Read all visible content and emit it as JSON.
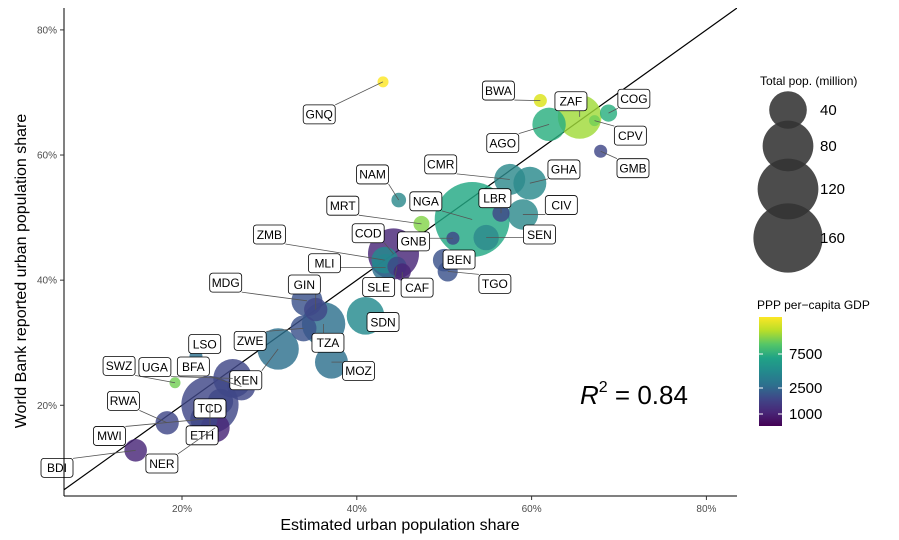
{
  "chart_data": {
    "type": "scatter",
    "xlabel": "Estimated urban population share",
    "ylabel": "World Bank reported urban population share",
    "xlim": [
      0.065,
      0.835
    ],
    "ylim": [
      0.055,
      0.835
    ],
    "xticks": [
      0.2,
      0.4,
      0.6,
      0.8
    ],
    "yticks": [
      0.2,
      0.4,
      0.6,
      0.8
    ],
    "xtick_labels": [
      "20%",
      "40%",
      "60%",
      "80%"
    ],
    "ytick_labels": [
      "20%",
      "40%",
      "60%",
      "80%"
    ],
    "grid": false,
    "identity_line": true,
    "annotation": {
      "r_symbol": "R",
      "superscript": "2",
      "text": " = 0.84"
    },
    "legend_size": {
      "title": "Total pop. (million)",
      "values": [
        40,
        80,
        120,
        160
      ],
      "labels": [
        "40",
        "80",
        "120",
        "160"
      ]
    },
    "legend_color": {
      "title": "PPP per−capita GDP",
      "labels": [
        "7500",
        "2500",
        "1000"
      ],
      "colors": [
        "#FDE725",
        "#B8DE29",
        "#55C667",
        "#20A386",
        "#238A8D",
        "#2D708E",
        "#3F4788",
        "#482677",
        "#440154"
      ]
    },
    "points": [
      {
        "code": "GNQ",
        "x": 0.43,
        "y": 0.717,
        "pop": 1,
        "color": "#FDE725"
      },
      {
        "code": "BWA",
        "x": 0.61,
        "y": 0.687,
        "pop": 2,
        "color": "#DCE319"
      },
      {
        "code": "ZAF",
        "x": 0.655,
        "y": 0.661,
        "pop": 57,
        "color": "#A0DA39"
      },
      {
        "code": "COG",
        "x": 0.688,
        "y": 0.667,
        "pop": 5,
        "color": "#29AF7F"
      },
      {
        "code": "CPV",
        "x": 0.672,
        "y": 0.655,
        "pop": 1,
        "color": "#73D055"
      },
      {
        "code": "AGO",
        "x": 0.62,
        "y": 0.649,
        "pop": 30,
        "color": "#29AF7F"
      },
      {
        "code": "GMB",
        "x": 0.679,
        "y": 0.606,
        "pop": 2,
        "color": "#3F4788"
      },
      {
        "code": "CMR",
        "x": 0.575,
        "y": 0.561,
        "pop": 25,
        "color": "#2D8A8C"
      },
      {
        "code": "GHA",
        "x": 0.598,
        "y": 0.555,
        "pop": 29,
        "color": "#2A8A8C"
      },
      {
        "code": "NAM",
        "x": 0.448,
        "y": 0.528,
        "pop": 3,
        "color": "#2D8A8C"
      },
      {
        "code": "NGA",
        "x": 0.532,
        "y": 0.497,
        "pop": 190,
        "color": "#22A884"
      },
      {
        "code": "LBR",
        "x": 0.565,
        "y": 0.507,
        "pop": 5,
        "color": "#3F4788"
      },
      {
        "code": "CIV",
        "x": 0.59,
        "y": 0.505,
        "pop": 24,
        "color": "#2D8A8C"
      },
      {
        "code": "MRT",
        "x": 0.474,
        "y": 0.49,
        "pop": 4,
        "color": "#84D44B"
      },
      {
        "code": "SEN",
        "x": 0.548,
        "y": 0.468,
        "pop": 15,
        "color": "#2D8A8C"
      },
      {
        "code": "COD",
        "x": 0.442,
        "y": 0.442,
        "pop": 81,
        "color": "#482677"
      },
      {
        "code": "GNB",
        "x": 0.51,
        "y": 0.467,
        "pop": 2,
        "color": "#3F4788"
      },
      {
        "code": "BEN",
        "x": 0.5,
        "y": 0.432,
        "pop": 11,
        "color": "#3B528B"
      },
      {
        "code": "ZMB",
        "x": 0.432,
        "y": 0.432,
        "pop": 17,
        "color": "#238A8D"
      },
      {
        "code": "MLI",
        "x": 0.433,
        "y": 0.42,
        "pop": 18,
        "color": "#2D708E"
      },
      {
        "code": "TGO",
        "x": 0.504,
        "y": 0.414,
        "pop": 8,
        "color": "#3B528B"
      },
      {
        "code": "SLE",
        "x": 0.446,
        "y": 0.422,
        "pop": 7,
        "color": "#3F4788"
      },
      {
        "code": "CAF",
        "x": 0.452,
        "y": 0.413,
        "pop": 5,
        "color": "#482677"
      },
      {
        "code": "MDG",
        "x": 0.343,
        "y": 0.367,
        "pop": 25,
        "color": "#3B528B"
      },
      {
        "code": "GIN",
        "x": 0.353,
        "y": 0.353,
        "pop": 12,
        "color": "#3F4788"
      },
      {
        "code": "SDN",
        "x": 0.41,
        "y": 0.343,
        "pop": 40,
        "color": "#238A8D"
      },
      {
        "code": "TZA",
        "x": 0.362,
        "y": 0.33,
        "pop": 56,
        "color": "#2D708E"
      },
      {
        "code": "ZWE",
        "x": 0.339,
        "y": 0.323,
        "pop": 16,
        "color": "#3B528B"
      },
      {
        "code": "LSO",
        "x": 0.216,
        "y": 0.278,
        "pop": 2,
        "color": "#2D708E"
      },
      {
        "code": "MOZ",
        "x": 0.371,
        "y": 0.269,
        "pop": 29,
        "color": "#2D708E"
      },
      {
        "code": "KEN",
        "x": 0.31,
        "y": 0.29,
        "pop": 50,
        "color": "#2D708E"
      },
      {
        "code": "SWZ",
        "x": 0.192,
        "y": 0.236,
        "pop": 1,
        "color": "#73D055"
      },
      {
        "code": "UGA",
        "x": 0.258,
        "y": 0.243,
        "pop": 43,
        "color": "#3F4788"
      },
      {
        "code": "BFA",
        "x": 0.268,
        "y": 0.23,
        "pop": 19,
        "color": "#3F4788"
      },
      {
        "code": "RWA",
        "x": 0.183,
        "y": 0.172,
        "pop": 12,
        "color": "#3F4788"
      },
      {
        "code": "TCD",
        "x": 0.244,
        "y": 0.206,
        "pop": 15,
        "color": "#3F4788"
      },
      {
        "code": "ETH",
        "x": 0.232,
        "y": 0.201,
        "pop": 105,
        "color": "#3F4788"
      },
      {
        "code": "NER",
        "x": 0.238,
        "y": 0.164,
        "pop": 21,
        "color": "#482677"
      },
      {
        "code": "MWI",
        "x": 0.225,
        "y": 0.178,
        "pop": 18,
        "color": "#3F4788"
      },
      {
        "code": "BDI",
        "x": 0.147,
        "y": 0.128,
        "pop": 11,
        "color": "#482677"
      }
    ],
    "labels": [
      {
        "code": "GNQ",
        "lx": 0.357,
        "ly": 0.665
      },
      {
        "code": "BWA",
        "x2": 0.61,
        "lx": 0.562,
        "ly": 0.703
      },
      {
        "code": "ZAF",
        "lx": 0.645,
        "ly": 0.686
      },
      {
        "code": "COG",
        "lx": 0.717,
        "ly": 0.69
      },
      {
        "code": "CPV",
        "lx": 0.713,
        "ly": 0.631
      },
      {
        "code": "AGO",
        "lx": 0.567,
        "ly": 0.619
      },
      {
        "code": "GMB",
        "lx": 0.716,
        "ly": 0.579
      },
      {
        "code": "CMR",
        "lx": 0.496,
        "ly": 0.585
      },
      {
        "code": "GHA",
        "lx": 0.637,
        "ly": 0.577
      },
      {
        "code": "NAM",
        "lx": 0.418,
        "ly": 0.569
      },
      {
        "code": "NGA",
        "lx": 0.479,
        "ly": 0.526
      },
      {
        "code": "LBR",
        "lx": 0.558,
        "ly": 0.531
      },
      {
        "code": "CIV",
        "lx": 0.634,
        "ly": 0.52
      },
      {
        "code": "MRT",
        "lx": 0.384,
        "ly": 0.519
      },
      {
        "code": "SEN",
        "lx": 0.609,
        "ly": 0.473
      },
      {
        "code": "ZMB",
        "lx": 0.3,
        "ly": 0.473
      },
      {
        "code": "COD",
        "lx": 0.413,
        "ly": 0.475
      },
      {
        "code": "GNB",
        "lx": 0.465,
        "ly": 0.462
      },
      {
        "code": "BEN",
        "lx": 0.517,
        "ly": 0.433
      },
      {
        "code": "MLI",
        "lx": 0.363,
        "ly": 0.427
      },
      {
        "code": "TGO",
        "lx": 0.558,
        "ly": 0.394
      },
      {
        "code": "SLE",
        "lx": 0.425,
        "ly": 0.389
      },
      {
        "code": "CAF",
        "lx": 0.469,
        "ly": 0.388
      },
      {
        "code": "MDG",
        "lx": 0.25,
        "ly": 0.396
      },
      {
        "code": "GIN",
        "lx": 0.34,
        "ly": 0.393
      },
      {
        "code": "SDN",
        "lx": 0.43,
        "ly": 0.333
      },
      {
        "code": "TZA",
        "lx": 0.367,
        "ly": 0.3
      },
      {
        "code": "ZWE",
        "lx": 0.278,
        "ly": 0.303
      },
      {
        "code": "LSO",
        "lx": 0.226,
        "ly": 0.298
      },
      {
        "code": "MOZ",
        "lx": 0.402,
        "ly": 0.255
      },
      {
        "code": "KEN",
        "lx": 0.273,
        "ly": 0.24
      },
      {
        "code": "SWZ",
        "lx": 0.128,
        "ly": 0.263
      },
      {
        "code": "UGA",
        "lx": 0.169,
        "ly": 0.261
      },
      {
        "code": "BFA",
        "lx": 0.213,
        "ly": 0.262
      },
      {
        "code": "RWA",
        "lx": 0.133,
        "ly": 0.207
      },
      {
        "code": "TCD",
        "lx": 0.232,
        "ly": 0.195
      },
      {
        "code": "ETH",
        "lx": 0.223,
        "ly": 0.152
      },
      {
        "code": "NER",
        "lx": 0.177,
        "ly": 0.107
      },
      {
        "code": "MWI",
        "lx": 0.117,
        "ly": 0.151
      },
      {
        "code": "BDI",
        "lx": 0.057,
        "ly": 0.1
      }
    ]
  }
}
